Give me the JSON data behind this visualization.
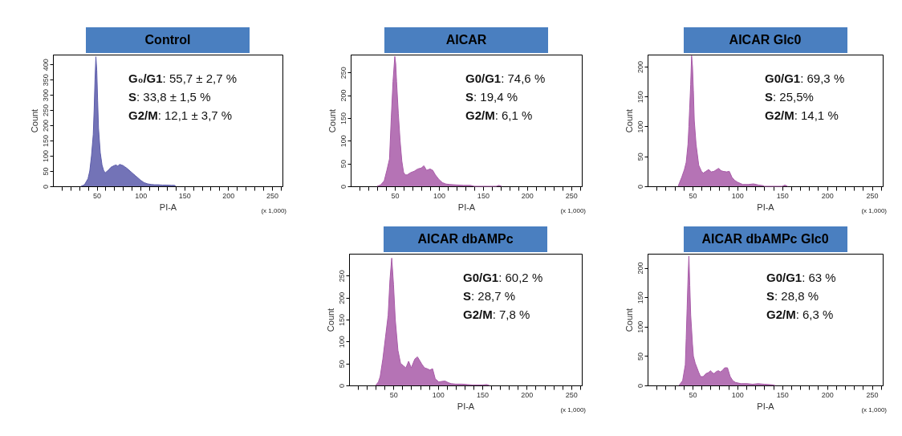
{
  "chart_data": [
    {
      "type": "area",
      "title": "Control",
      "xlabel": "PI-A",
      "ylabel": "Count",
      "xlim": [
        0,
        262
      ],
      "ylim": [
        0,
        432
      ],
      "xticks": [
        {
          "value": 10,
          "label": null
        },
        {
          "value": 20,
          "label": null
        },
        {
          "value": 30,
          "label": null
        },
        {
          "value": 40,
          "label": null
        },
        50,
        {
          "value": 60,
          "label": null
        },
        {
          "value": 70,
          "label": null
        },
        {
          "value": 80,
          "label": null
        },
        {
          "value": 90,
          "label": null
        },
        100,
        {
          "value": 110,
          "label": null
        },
        {
          "value": 120,
          "label": null
        },
        {
          "value": 130,
          "label": null
        },
        {
          "value": 140,
          "label": null
        },
        150,
        {
          "value": 160,
          "label": null
        },
        {
          "value": 170,
          "label": null
        },
        {
          "value": 180,
          "label": null
        },
        {
          "value": 190,
          "label": null
        },
        200,
        {
          "value": 210,
          "label": null
        },
        {
          "value": 220,
          "label": null
        },
        {
          "value": 230,
          "label": null
        },
        {
          "value": 240,
          "label": null
        },
        250,
        {
          "value": 260,
          "label": null
        }
      ],
      "yticks": [
        0,
        50,
        100,
        150,
        200,
        250,
        300,
        350,
        400
      ],
      "x": [
        32,
        36,
        40,
        42,
        44,
        46,
        47,
        48,
        49,
        50,
        51,
        52,
        54,
        56,
        58,
        60,
        62,
        64,
        66,
        68,
        70,
        72,
        74,
        76,
        78,
        80,
        82,
        84,
        86,
        88,
        90,
        92,
        94,
        96,
        98,
        100,
        104,
        108,
        112,
        116,
        120,
        125,
        130,
        135,
        139,
        140
      ],
      "series": [
        {
          "color": "#5b5baa",
          "values": [
            0,
            5,
            25,
            50,
            100,
            170,
            250,
            350,
            425,
            380,
            280,
            190,
            110,
            70,
            50,
            45,
            50,
            55,
            62,
            65,
            68,
            70,
            66,
            72,
            70,
            68,
            64,
            60,
            55,
            50,
            45,
            40,
            35,
            30,
            25,
            20,
            12,
            8,
            6,
            5,
            5,
            4,
            4,
            3,
            3,
            0
          ]
        }
      ],
      "annotations": [
        "G₀/G1: 55,7 ± 2,7 %",
        "S: 33,8 ± 1,5 %",
        "G2/M: 12,1 ± 3,7 %",
        "(x 1,000)"
      ]
    },
    {
      "type": "area",
      "title": "AICAR",
      "xlabel": "PI-A",
      "ylabel": "Count",
      "xlim": [
        0,
        262
      ],
      "ylim": [
        0,
        289
      ],
      "xticks": [
        {
          "value": 10,
          "label": null
        },
        {
          "value": 20,
          "label": null
        },
        {
          "value": 30,
          "label": null
        },
        {
          "value": 40,
          "label": null
        },
        50,
        {
          "value": 60,
          "label": null
        },
        {
          "value": 70,
          "label": null
        },
        {
          "value": 80,
          "label": null
        },
        {
          "value": 90,
          "label": null
        },
        100,
        {
          "value": 110,
          "label": null
        },
        {
          "value": 120,
          "label": null
        },
        {
          "value": 130,
          "label": null
        },
        {
          "value": 140,
          "label": null
        },
        150,
        {
          "value": 160,
          "label": null
        },
        {
          "value": 170,
          "label": null
        },
        {
          "value": 180,
          "label": null
        },
        {
          "value": 190,
          "label": null
        },
        200,
        {
          "value": 210,
          "label": null
        },
        {
          "value": 220,
          "label": null
        },
        {
          "value": 230,
          "label": null
        },
        {
          "value": 240,
          "label": null
        },
        250,
        {
          "value": 260,
          "label": null
        }
      ],
      "yticks": [
        0,
        50,
        100,
        150,
        200,
        250
      ],
      "x": [
        30,
        34,
        38,
        41,
        44,
        46,
        48,
        50,
        51,
        52,
        54,
        56,
        58,
        60,
        62,
        64,
        68,
        72,
        76,
        80,
        83,
        86,
        90,
        93,
        96,
        100,
        104,
        108,
        112,
        120,
        128,
        136,
        140,
        165,
        168,
        171
      ],
      "series": [
        {
          "color": "#a85aa8",
          "values": [
            0,
            3,
            12,
            35,
            60,
            150,
            230,
            285,
            270,
            230,
            160,
            100,
            55,
            30,
            25,
            25,
            30,
            33,
            38,
            40,
            45,
            35,
            38,
            35,
            25,
            15,
            8,
            5,
            4,
            3,
            2,
            2,
            0,
            0,
            2,
            0
          ]
        }
      ],
      "annotations": [
        "G0/G1: 74,6 %",
        "S: 19,4 %",
        "G2/M: 6,1 %",
        "(x 1,000)"
      ]
    },
    {
      "type": "area",
      "title": "AICAR Glc0",
      "xlabel": "PI-A",
      "ylabel": "Count",
      "xlim": [
        0,
        262
      ],
      "ylim": [
        0,
        220
      ],
      "xticks": [
        {
          "value": 10,
          "label": null
        },
        {
          "value": 20,
          "label": null
        },
        {
          "value": 30,
          "label": null
        },
        {
          "value": 40,
          "label": null
        },
        50,
        {
          "value": 60,
          "label": null
        },
        {
          "value": 70,
          "label": null
        },
        {
          "value": 80,
          "label": null
        },
        {
          "value": 90,
          "label": null
        },
        100,
        {
          "value": 110,
          "label": null
        },
        {
          "value": 120,
          "label": null
        },
        {
          "value": 130,
          "label": null
        },
        {
          "value": 140,
          "label": null
        },
        150,
        {
          "value": 160,
          "label": null
        },
        {
          "value": 170,
          "label": null
        },
        {
          "value": 180,
          "label": null
        },
        {
          "value": 190,
          "label": null
        },
        200,
        {
          "value": 210,
          "label": null
        },
        {
          "value": 220,
          "label": null
        },
        {
          "value": 230,
          "label": null
        },
        {
          "value": 240,
          "label": null
        },
        250,
        {
          "value": 260,
          "label": null
        }
      ],
      "yticks": [
        0,
        50,
        100,
        150,
        200
      ],
      "x": [
        34,
        38,
        41,
        43,
        45,
        46,
        48,
        49,
        50,
        51,
        52,
        54,
        57,
        60,
        62,
        65,
        68,
        71,
        74,
        77,
        79,
        82,
        84,
        88,
        91,
        94,
        97,
        100,
        106,
        112,
        118,
        124,
        129,
        130,
        150,
        153,
        156
      ],
      "series": [
        {
          "color": "#a85aa8",
          "values": [
            0,
            15,
            28,
            40,
            70,
            100,
            170,
            218,
            200,
            160,
            110,
            70,
            35,
            25,
            22,
            25,
            28,
            24,
            25,
            28,
            30,
            26,
            25,
            24,
            25,
            15,
            10,
            7,
            3,
            3,
            4,
            2,
            1,
            0,
            0,
            2,
            0
          ]
        }
      ],
      "annotations": [
        "G0/G1: 69,3 %",
        "S: 25,5%",
        "G2/M: 14,1 %",
        "(x 1,000)"
      ]
    },
    {
      "type": "area",
      "title": "AICAR  dbAMPc",
      "xlabel": "PI-A",
      "ylabel": "Count",
      "xlim": [
        0,
        262
      ],
      "ylim": [
        0,
        300
      ],
      "xticks": [
        {
          "value": 10,
          "label": null
        },
        {
          "value": 20,
          "label": null
        },
        {
          "value": 30,
          "label": null
        },
        {
          "value": 40,
          "label": null
        },
        50,
        {
          "value": 60,
          "label": null
        },
        {
          "value": 70,
          "label": null
        },
        {
          "value": 80,
          "label": null
        },
        {
          "value": 90,
          "label": null
        },
        100,
        {
          "value": 110,
          "label": null
        },
        {
          "value": 120,
          "label": null
        },
        {
          "value": 130,
          "label": null
        },
        {
          "value": 140,
          "label": null
        },
        150,
        {
          "value": 160,
          "label": null
        },
        {
          "value": 170,
          "label": null
        },
        {
          "value": 180,
          "label": null
        },
        {
          "value": 190,
          "label": null
        },
        200,
        {
          "value": 210,
          "label": null
        },
        {
          "value": 220,
          "label": null
        },
        {
          "value": 230,
          "label": null
        },
        {
          "value": 240,
          "label": null
        },
        250,
        {
          "value": 260,
          "label": null
        }
      ],
      "yticks": [
        0,
        50,
        100,
        150,
        200,
        250
      ],
      "x": [
        30,
        33,
        35,
        38,
        41,
        44,
        46,
        48,
        50,
        52,
        55,
        58,
        61,
        64,
        67,
        70,
        74,
        77,
        80,
        82,
        85,
        88,
        91,
        94,
        97,
        101,
        104,
        108,
        112,
        115,
        120,
        127,
        133,
        139,
        150,
        155,
        158
      ],
      "series": [
        {
          "color": "#a85aa8",
          "values": [
            0,
            8,
            20,
            60,
            110,
            160,
            240,
            290,
            230,
            150,
            80,
            50,
            45,
            40,
            55,
            40,
            60,
            65,
            55,
            48,
            40,
            38,
            35,
            38,
            15,
            8,
            9,
            10,
            6,
            4,
            3,
            3,
            2,
            1,
            1,
            2,
            0
          ]
        }
      ],
      "annotations": [
        "G0/G1: 60,2 %",
        "S: 28,7 %",
        "G2/M: 7,8 %",
        "(x 1,000)"
      ]
    },
    {
      "type": "area",
      "title": "AICAR  dbAMPc Glc0",
      "xlabel": "PI-A",
      "ylabel": "Count",
      "xlim": [
        0,
        262
      ],
      "ylim": [
        0,
        224
      ],
      "xticks": [
        {
          "value": 10,
          "label": null
        },
        {
          "value": 20,
          "label": null
        },
        {
          "value": 30,
          "label": null
        },
        {
          "value": 40,
          "label": null
        },
        50,
        {
          "value": 60,
          "label": null
        },
        {
          "value": 70,
          "label": null
        },
        {
          "value": 80,
          "label": null
        },
        {
          "value": 90,
          "label": null
        },
        100,
        {
          "value": 110,
          "label": null
        },
        {
          "value": 120,
          "label": null
        },
        {
          "value": 130,
          "label": null
        },
        {
          "value": 140,
          "label": null
        },
        150,
        {
          "value": 160,
          "label": null
        },
        {
          "value": 170,
          "label": null
        },
        {
          "value": 180,
          "label": null
        },
        {
          "value": 190,
          "label": null
        },
        200,
        {
          "value": 210,
          "label": null
        },
        {
          "value": 220,
          "label": null
        },
        {
          "value": 230,
          "label": null
        },
        {
          "value": 240,
          "label": null
        },
        250,
        {
          "value": 260,
          "label": null
        }
      ],
      "yticks": [
        0,
        50,
        100,
        150,
        200
      ],
      "x": [
        35,
        39,
        42,
        43,
        44,
        45,
        46,
        47,
        48,
        50,
        51,
        53,
        55,
        57,
        59,
        62,
        65,
        68,
        70,
        72,
        74,
        77,
        79,
        81,
        83,
        86,
        89,
        92,
        95,
        98,
        104,
        111,
        117,
        123,
        130,
        139,
        142
      ],
      "series": [
        {
          "color": "#a85aa8",
          "values": [
            0,
            8,
            35,
            80,
            130,
            180,
            220,
            170,
            120,
            70,
            50,
            38,
            30,
            22,
            15,
            15,
            20,
            22,
            25,
            22,
            20,
            24,
            25,
            23,
            25,
            30,
            30,
            15,
            8,
            5,
            3,
            3,
            2,
            3,
            2,
            1,
            0
          ]
        }
      ],
      "annotations": [
        "G0/G1: 63 %",
        "S: 28,8 %",
        "G2/M: 6,3 %",
        "(x 1,000)"
      ]
    }
  ]
}
